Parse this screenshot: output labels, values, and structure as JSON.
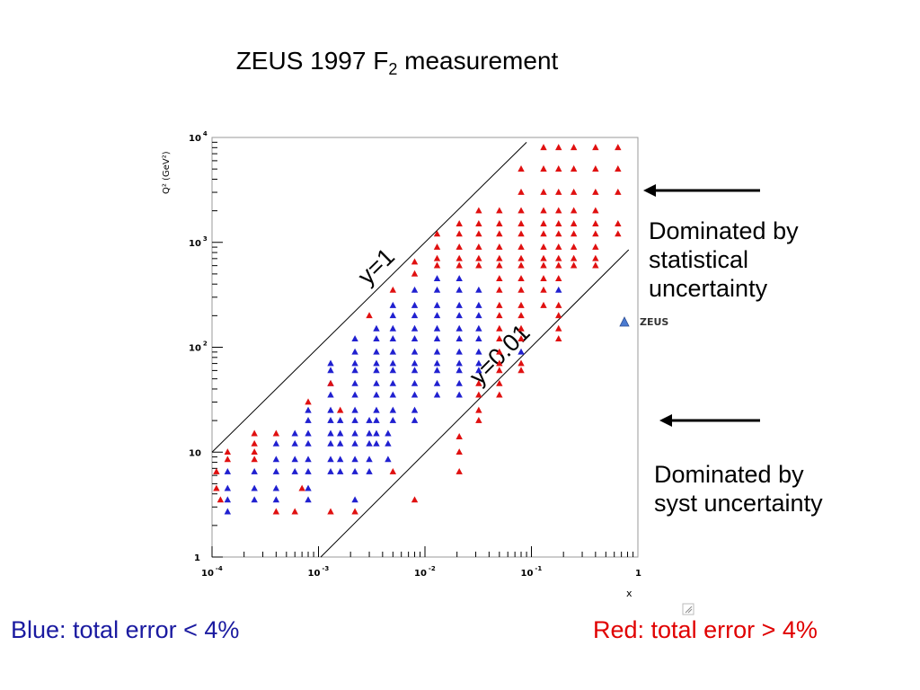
{
  "slide": {
    "title_main": "ZEUS 1997 F",
    "title_sub": "2",
    "title_rest": " measurement",
    "note_statistical": "Dominated by\nstatistical\nuncertainty",
    "note_systematic": "Dominated by\nsyst uncertainty",
    "footer_blue": "Blue: total error < 4%",
    "footer_red": "Red: total error > 4%",
    "colors": {
      "blue": "#2020d0",
      "red": "#e01010",
      "footer_blue": "#1a1aa0",
      "footer_red": "#e00000"
    }
  },
  "chart_data": {
    "type": "scatter",
    "title": "",
    "xlabel": "x",
    "ylabel": "Q² (GeV²)",
    "x_scale": "log",
    "y_scale": "log",
    "xlim": [
      0.0001,
      1
    ],
    "ylim": [
      1,
      10000
    ],
    "x_tick_labels": [
      {
        "value": 0.0001,
        "base": "10",
        "exp": "-4"
      },
      {
        "value": 0.001,
        "base": "10",
        "exp": "-3"
      },
      {
        "value": 0.01,
        "base": "10",
        "exp": "-2"
      },
      {
        "value": 0.1,
        "base": "10",
        "exp": "-1"
      },
      {
        "value": 1,
        "base": "1",
        "exp": ""
      }
    ],
    "y_tick_labels": [
      {
        "value": 1,
        "base": "1",
        "exp": ""
      },
      {
        "value": 10,
        "base": "10",
        "exp": ""
      },
      {
        "value": 100,
        "base": "10",
        "exp": "2"
      },
      {
        "value": 1000,
        "base": "10",
        "exp": "3"
      },
      {
        "value": 10000,
        "base": "10",
        "exp": "4"
      }
    ],
    "legend": {
      "label": "ZEUS",
      "placement": "right"
    },
    "annotations": [
      {
        "label": "y=1",
        "line": [
          [
            0.0001,
            10
          ],
          [
            0.09,
            9000
          ]
        ]
      },
      {
        "label": "y=0.01",
        "line": [
          [
            0.00105,
            1
          ],
          [
            0.82,
            850
          ]
        ]
      }
    ],
    "series": [
      {
        "name": "Blue",
        "color": "#2020d0",
        "points": [
          [
            0.00014,
            6.5
          ],
          [
            0.00014,
            4.5
          ],
          [
            0.00014,
            3.5
          ],
          [
            0.00014,
            2.7
          ],
          [
            0.00025,
            6.5
          ],
          [
            0.00025,
            4.5
          ],
          [
            0.00025,
            3.5
          ],
          [
            0.0004,
            12
          ],
          [
            0.0004,
            8.5
          ],
          [
            0.0004,
            6.5
          ],
          [
            0.0004,
            4.5
          ],
          [
            0.0004,
            3.5
          ],
          [
            0.0006,
            15
          ],
          [
            0.0006,
            12
          ],
          [
            0.0006,
            8.5
          ],
          [
            0.0006,
            6.5
          ],
          [
            0.0008,
            25
          ],
          [
            0.0008,
            20
          ],
          [
            0.0008,
            15
          ],
          [
            0.0008,
            12
          ],
          [
            0.0008,
            8.5
          ],
          [
            0.0008,
            6.5
          ],
          [
            0.0008,
            4.5
          ],
          [
            0.0008,
            3.5
          ],
          [
            0.0013,
            70
          ],
          [
            0.0013,
            60
          ],
          [
            0.0013,
            45
          ],
          [
            0.0013,
            35
          ],
          [
            0.0013,
            25
          ],
          [
            0.0013,
            20
          ],
          [
            0.0013,
            15
          ],
          [
            0.0013,
            12
          ],
          [
            0.0013,
            8.5
          ],
          [
            0.0013,
            6.5
          ],
          [
            0.0016,
            20
          ],
          [
            0.0016,
            15
          ],
          [
            0.0016,
            12
          ],
          [
            0.0016,
            8.5
          ],
          [
            0.0016,
            6.5
          ],
          [
            0.0022,
            120
          ],
          [
            0.0022,
            90
          ],
          [
            0.0022,
            70
          ],
          [
            0.0022,
            60
          ],
          [
            0.0022,
            45
          ],
          [
            0.0022,
            35
          ],
          [
            0.0022,
            25
          ],
          [
            0.0022,
            20
          ],
          [
            0.0022,
            15
          ],
          [
            0.0022,
            12
          ],
          [
            0.0022,
            8.5
          ],
          [
            0.0022,
            6.5
          ],
          [
            0.0022,
            3.5
          ],
          [
            0.003,
            20
          ],
          [
            0.003,
            15
          ],
          [
            0.003,
            12
          ],
          [
            0.003,
            8.5
          ],
          [
            0.003,
            6.5
          ],
          [
            0.0035,
            150
          ],
          [
            0.0035,
            120
          ],
          [
            0.0035,
            90
          ],
          [
            0.0035,
            70
          ],
          [
            0.0035,
            60
          ],
          [
            0.0035,
            45
          ],
          [
            0.0035,
            35
          ],
          [
            0.0035,
            25
          ],
          [
            0.0035,
            20
          ],
          [
            0.0035,
            15
          ],
          [
            0.0035,
            12
          ],
          [
            0.0045,
            15
          ],
          [
            0.0045,
            12
          ],
          [
            0.0045,
            8.5
          ],
          [
            0.005,
            250
          ],
          [
            0.005,
            200
          ],
          [
            0.005,
            150
          ],
          [
            0.005,
            120
          ],
          [
            0.005,
            90
          ],
          [
            0.005,
            70
          ],
          [
            0.005,
            60
          ],
          [
            0.005,
            45
          ],
          [
            0.005,
            35
          ],
          [
            0.005,
            25
          ],
          [
            0.005,
            20
          ],
          [
            0.008,
            350
          ],
          [
            0.008,
            250
          ],
          [
            0.008,
            200
          ],
          [
            0.008,
            150
          ],
          [
            0.008,
            120
          ],
          [
            0.008,
            90
          ],
          [
            0.008,
            70
          ],
          [
            0.008,
            60
          ],
          [
            0.008,
            45
          ],
          [
            0.008,
            35
          ],
          [
            0.008,
            25
          ],
          [
            0.008,
            20
          ],
          [
            0.013,
            450
          ],
          [
            0.013,
            350
          ],
          [
            0.013,
            250
          ],
          [
            0.013,
            200
          ],
          [
            0.013,
            150
          ],
          [
            0.013,
            120
          ],
          [
            0.013,
            90
          ],
          [
            0.013,
            70
          ],
          [
            0.013,
            60
          ],
          [
            0.013,
            45
          ],
          [
            0.013,
            35
          ],
          [
            0.021,
            450
          ],
          [
            0.021,
            350
          ],
          [
            0.021,
            250
          ],
          [
            0.021,
            200
          ],
          [
            0.021,
            150
          ],
          [
            0.021,
            120
          ],
          [
            0.021,
            90
          ],
          [
            0.021,
            70
          ],
          [
            0.021,
            60
          ],
          [
            0.021,
            45
          ],
          [
            0.021,
            35
          ],
          [
            0.032,
            350
          ],
          [
            0.032,
            250
          ],
          [
            0.032,
            200
          ],
          [
            0.032,
            150
          ],
          [
            0.032,
            120
          ],
          [
            0.032,
            90
          ],
          [
            0.032,
            70
          ],
          [
            0.032,
            60
          ],
          [
            0.08,
            90
          ],
          [
            0.18,
            350
          ]
        ]
      },
      {
        "name": "Red",
        "color": "#e01010",
        "points": [
          [
            0.00011,
            6.5
          ],
          [
            0.00011,
            4.5
          ],
          [
            0.00012,
            3.5
          ],
          [
            0.00014,
            10
          ],
          [
            0.00014,
            8.5
          ],
          [
            0.00025,
            15
          ],
          [
            0.00025,
            12
          ],
          [
            0.00025,
            10
          ],
          [
            0.00025,
            8.5
          ],
          [
            0.0004,
            15
          ],
          [
            0.0004,
            2.7
          ],
          [
            0.0006,
            2.7
          ],
          [
            0.0007,
            4.5
          ],
          [
            0.0008,
            30
          ],
          [
            0.0013,
            45
          ],
          [
            0.0013,
            2.7
          ],
          [
            0.0016,
            25
          ],
          [
            0.0022,
            2.7
          ],
          [
            0.003,
            200
          ],
          [
            0.005,
            350
          ],
          [
            0.005,
            6.5
          ],
          [
            0.008,
            650
          ],
          [
            0.008,
            500
          ],
          [
            0.008,
            3.5
          ],
          [
            0.013,
            1200
          ],
          [
            0.013,
            900
          ],
          [
            0.013,
            700
          ],
          [
            0.013,
            600
          ],
          [
            0.021,
            1500
          ],
          [
            0.021,
            1200
          ],
          [
            0.021,
            900
          ],
          [
            0.021,
            700
          ],
          [
            0.021,
            600
          ],
          [
            0.021,
            14
          ],
          [
            0.021,
            10
          ],
          [
            0.021,
            6.5
          ],
          [
            0.032,
            2000
          ],
          [
            0.032,
            1500
          ],
          [
            0.032,
            1200
          ],
          [
            0.032,
            900
          ],
          [
            0.032,
            700
          ],
          [
            0.032,
            600
          ],
          [
            0.032,
            45
          ],
          [
            0.032,
            35
          ],
          [
            0.032,
            25
          ],
          [
            0.032,
            20
          ],
          [
            0.05,
            2000
          ],
          [
            0.05,
            1500
          ],
          [
            0.05,
            1200
          ],
          [
            0.05,
            900
          ],
          [
            0.05,
            700
          ],
          [
            0.05,
            600
          ],
          [
            0.05,
            450
          ],
          [
            0.05,
            350
          ],
          [
            0.05,
            250
          ],
          [
            0.05,
            200
          ],
          [
            0.05,
            150
          ],
          [
            0.05,
            120
          ],
          [
            0.05,
            90
          ],
          [
            0.05,
            70
          ],
          [
            0.05,
            60
          ],
          [
            0.05,
            45
          ],
          [
            0.05,
            35
          ],
          [
            0.08,
            5000
          ],
          [
            0.08,
            3000
          ],
          [
            0.08,
            2000
          ],
          [
            0.08,
            1500
          ],
          [
            0.08,
            1200
          ],
          [
            0.08,
            900
          ],
          [
            0.08,
            700
          ],
          [
            0.08,
            600
          ],
          [
            0.08,
            450
          ],
          [
            0.08,
            350
          ],
          [
            0.08,
            250
          ],
          [
            0.08,
            200
          ],
          [
            0.08,
            150
          ],
          [
            0.08,
            120
          ],
          [
            0.08,
            70
          ],
          [
            0.08,
            60
          ],
          [
            0.13,
            8000
          ],
          [
            0.13,
            5000
          ],
          [
            0.13,
            3000
          ],
          [
            0.13,
            2000
          ],
          [
            0.13,
            1500
          ],
          [
            0.13,
            1200
          ],
          [
            0.13,
            900
          ],
          [
            0.13,
            700
          ],
          [
            0.13,
            600
          ],
          [
            0.13,
            450
          ],
          [
            0.13,
            350
          ],
          [
            0.13,
            250
          ],
          [
            0.18,
            8000
          ],
          [
            0.18,
            5000
          ],
          [
            0.18,
            3000
          ],
          [
            0.18,
            2000
          ],
          [
            0.18,
            1500
          ],
          [
            0.18,
            1200
          ],
          [
            0.18,
            900
          ],
          [
            0.18,
            700
          ],
          [
            0.18,
            600
          ],
          [
            0.18,
            450
          ],
          [
            0.18,
            250
          ],
          [
            0.18,
            200
          ],
          [
            0.18,
            150
          ],
          [
            0.18,
            120
          ],
          [
            0.25,
            8000
          ],
          [
            0.25,
            5000
          ],
          [
            0.25,
            3000
          ],
          [
            0.25,
            2000
          ],
          [
            0.25,
            1500
          ],
          [
            0.25,
            1200
          ],
          [
            0.25,
            900
          ],
          [
            0.25,
            700
          ],
          [
            0.25,
            600
          ],
          [
            0.4,
            8000
          ],
          [
            0.4,
            5000
          ],
          [
            0.4,
            3000
          ],
          [
            0.4,
            2000
          ],
          [
            0.4,
            1500
          ],
          [
            0.4,
            1200
          ],
          [
            0.4,
            900
          ],
          [
            0.4,
            700
          ],
          [
            0.4,
            600
          ],
          [
            0.65,
            8000
          ],
          [
            0.65,
            5000
          ],
          [
            0.65,
            3000
          ],
          [
            0.65,
            1500
          ],
          [
            0.65,
            1200
          ]
        ]
      }
    ]
  }
}
